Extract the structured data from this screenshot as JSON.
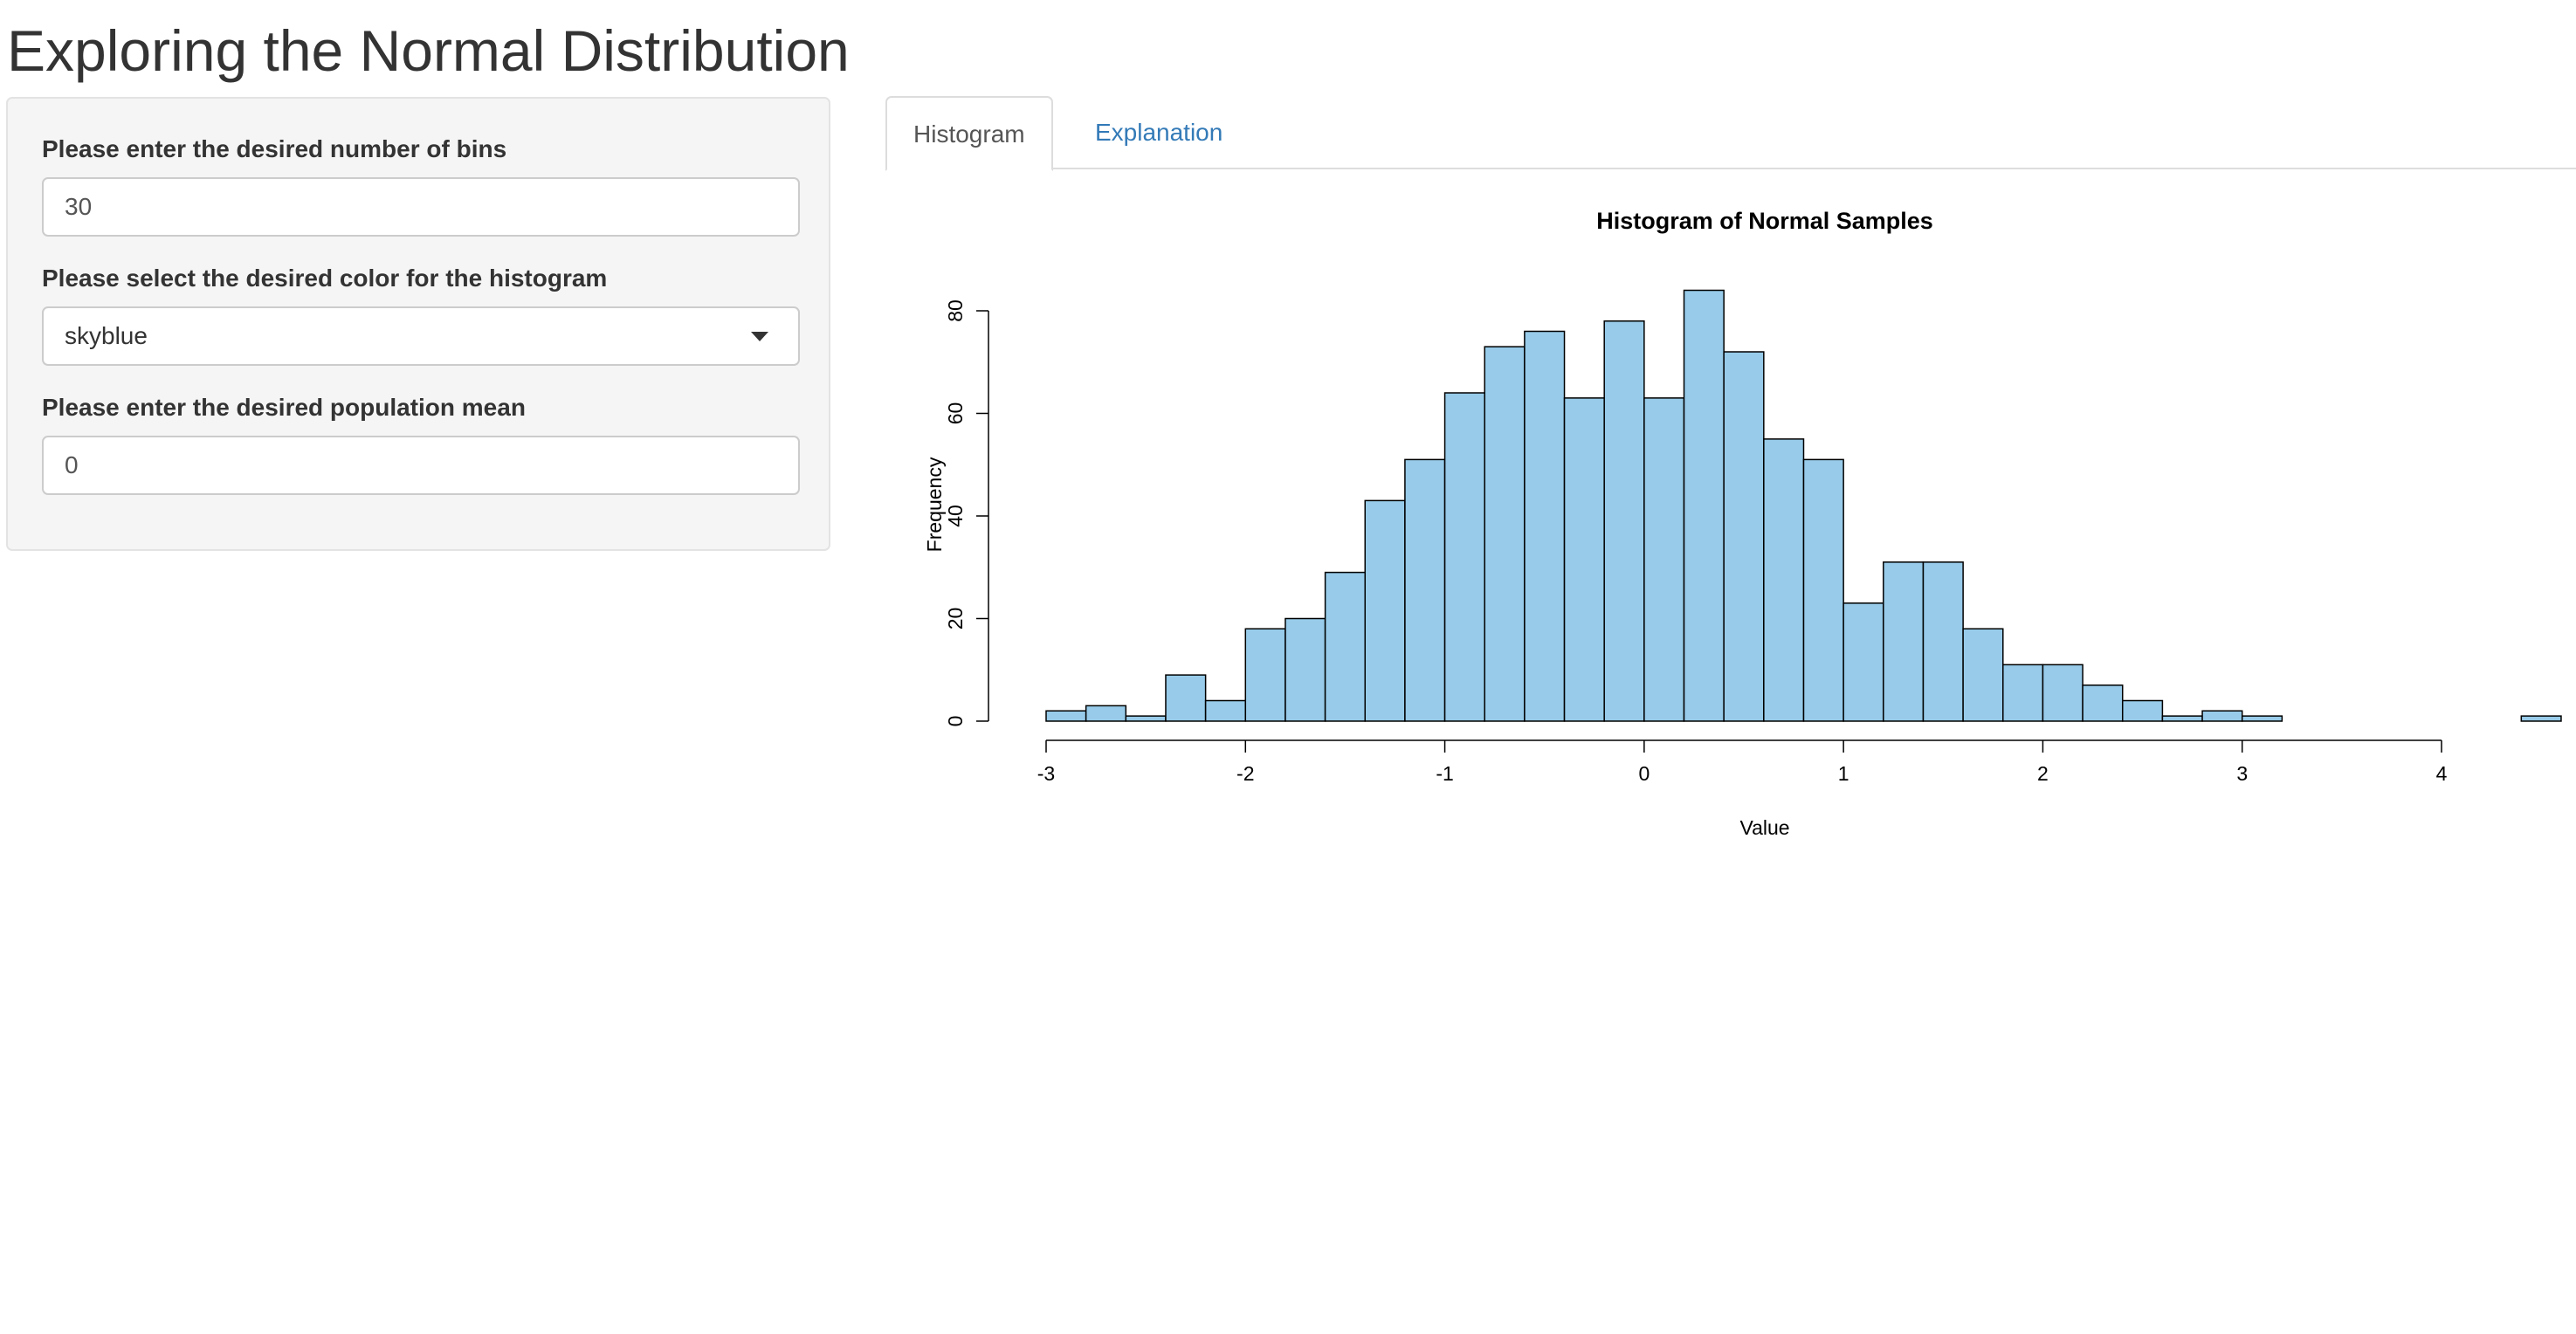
{
  "page": {
    "title": "Exploring the Normal Distribution"
  },
  "sidebar": {
    "bins_label": "Please enter the desired number of bins",
    "bins_value": "30",
    "color_label": "Please select the desired color for the histogram",
    "color_value": "skyblue",
    "mean_label": "Please enter the desired population mean",
    "mean_value": "0"
  },
  "tabs": [
    {
      "label": "Histogram",
      "active": true
    },
    {
      "label": "Explanation",
      "active": false
    }
  ],
  "colors": {
    "bar_fill": "#97cbe9",
    "bar_stroke": "#000000",
    "link": "#337ab7"
  },
  "chart_data": {
    "type": "bar",
    "title": "Histogram of Normal Samples",
    "xlabel": "Value",
    "ylabel": "Frequency",
    "bin_width": 0.2,
    "bin_start": -3,
    "values": [
      2,
      3,
      1,
      9,
      4,
      18,
      20,
      29,
      43,
      51,
      64,
      73,
      76,
      63,
      78,
      63,
      84,
      72,
      55,
      51,
      23,
      31,
      31,
      18,
      11,
      11,
      7,
      4,
      1,
      2,
      1,
      0,
      0,
      0,
      0,
      0,
      0,
      1
    ],
    "xlim": [
      -3,
      4.2
    ],
    "ylim": [
      0,
      84
    ],
    "x_ticks": [
      -3,
      -2,
      -1,
      0,
      1,
      2,
      3,
      4
    ],
    "x_tick_labels": [
      "-3",
      "-2",
      "-1",
      "0",
      "1",
      "2",
      "3",
      "4"
    ],
    "y_ticks": [
      0,
      20,
      40,
      60,
      80
    ],
    "y_tick_labels": [
      "0",
      "20",
      "40",
      "60",
      "80"
    ],
    "grid": false,
    "legend": "none"
  }
}
